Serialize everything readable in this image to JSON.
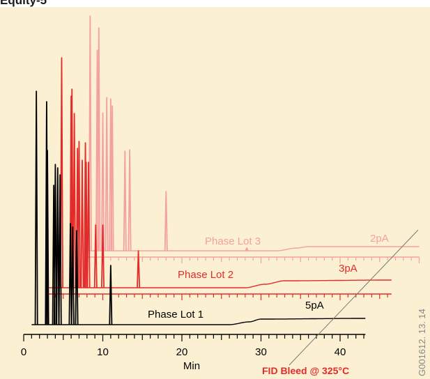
{
  "header": {
    "title": "Equity-5"
  },
  "figure_code": "G001612. 13. 14",
  "colors": {
    "background": "#fbf0d2",
    "lot1": "#000000",
    "lot2": "#e32b2b",
    "lot3": "#f4a0a0",
    "bleed_label": "#e32b2b",
    "bleed_line": "#777777"
  },
  "chart_data": {
    "type": "line",
    "title": "",
    "xlabel": "Min",
    "ylabel": "",
    "xlim": [
      0,
      45
    ],
    "xticks": [
      0,
      10,
      20,
      30,
      40
    ],
    "xtick_labels": [
      "0",
      "10",
      "20",
      "30",
      "40"
    ],
    "grid": false,
    "series": [
      {
        "name": "Phase Lot 1",
        "sensitivity_label": "5pA",
        "x_start": 1.0,
        "x_end": 43.2,
        "baseline_rise": [
          [
            26,
            0
          ],
          [
            28.5,
            4
          ],
          [
            30,
            8
          ],
          [
            43.2,
            9
          ]
        ],
        "peaks": [
          [
            1.6,
            335
          ],
          [
            2.9,
            320
          ],
          [
            3.0,
            250
          ],
          [
            3.8,
            200
          ],
          [
            4.0,
            230
          ],
          [
            4.3,
            225
          ],
          [
            4.6,
            215
          ],
          [
            5.9,
            145
          ],
          [
            6.2,
            140
          ],
          [
            6.7,
            135
          ],
          [
            11.0,
            85
          ]
        ]
      },
      {
        "name": "Phase Lot 2",
        "sensitivity_label": "3pA",
        "x_start": 3.0,
        "x_end": 46.5,
        "baseline_rise": [
          [
            28,
            0
          ],
          [
            30.5,
            5
          ],
          [
            33,
            10
          ],
          [
            46.5,
            11
          ]
        ],
        "peaks": [
          [
            4.8,
            330
          ],
          [
            6.0,
            275
          ],
          [
            6.1,
            285
          ],
          [
            6.4,
            250
          ],
          [
            6.8,
            200
          ],
          [
            7.0,
            210
          ],
          [
            7.4,
            183
          ],
          [
            7.8,
            208
          ],
          [
            7.9,
            180
          ],
          [
            8.2,
            180
          ],
          [
            9.1,
            90
          ],
          [
            10.0,
            90
          ],
          [
            14.5,
            53
          ]
        ]
      },
      {
        "name": "Phase Lot 3",
        "sensitivity_label": "2pA",
        "x_start": 8.0,
        "x_end": 50.0,
        "baseline_rise": [
          [
            32,
            0
          ],
          [
            34.5,
            4
          ],
          [
            36,
            6
          ],
          [
            50.0,
            6
          ]
        ],
        "peaks": [
          [
            8.4,
            337
          ],
          [
            9.3,
            288
          ],
          [
            9.5,
            320
          ],
          [
            10.0,
            198
          ],
          [
            10.5,
            220
          ],
          [
            11.0,
            218
          ],
          [
            11.2,
            208
          ],
          [
            12.8,
            143
          ],
          [
            13.4,
            145
          ],
          [
            18.0,
            85
          ],
          [
            28.2,
            4
          ]
        ]
      }
    ],
    "annotation": {
      "text": "FID Bleed @ 325°C"
    }
  }
}
